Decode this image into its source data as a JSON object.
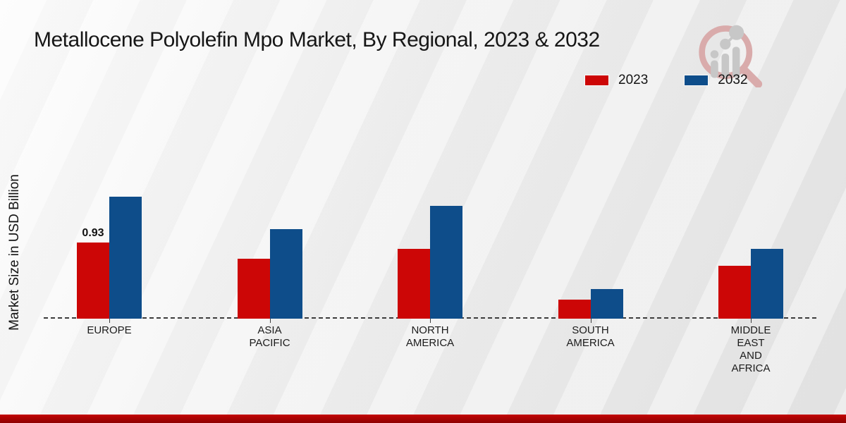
{
  "header": {
    "title": "Metallocene Polyolefin Mpo Market, By Regional, 2023 & 2032"
  },
  "y_axis_label": "Market Size in USD Billion",
  "legend": {
    "items": [
      {
        "label": "2023",
        "color": "#cc0606"
      },
      {
        "label": "2032",
        "color": "#0e4d8a"
      }
    ]
  },
  "logo": {
    "name": "magnifier-bar-chart-logo"
  },
  "colors": {
    "series_2023": "#cc0606",
    "series_2032": "#0e4d8a",
    "bottom_strip": "#b00303",
    "baseline": "#3c3c3c"
  },
  "chart_data": {
    "type": "bar",
    "title": "Metallocene Polyolefin Mpo Market, By Regional, 2023 & 2032",
    "categories": [
      "Europe",
      "Asia Pacific",
      "North America",
      "South America",
      "Middle East and Africa"
    ],
    "category_lines": [
      [
        "EUROPE"
      ],
      [
        "ASIA",
        "PACIFIC"
      ],
      [
        "NORTH",
        "AMERICA"
      ],
      [
        "SOUTH",
        "AMERICA"
      ],
      [
        "MIDDLE",
        "EAST",
        "AND",
        "AFRICA"
      ]
    ],
    "series": [
      {
        "name": "2023",
        "color": "#cc0606",
        "values": [
          0.93,
          0.73,
          0.85,
          0.23,
          0.65
        ]
      },
      {
        "name": "2032",
        "color": "#0e4d8a",
        "values": [
          1.49,
          1.09,
          1.38,
          0.36,
          0.85
        ]
      }
    ],
    "bar_labels": [
      {
        "series": "2023",
        "category_index": 0,
        "text": "0.93"
      }
    ],
    "xlabel": "",
    "ylabel": "Market Size in USD Billion",
    "ylim": [
      0,
      2.4
    ],
    "grid": false,
    "y_axis_ticks": "none",
    "legend_position": "top-right",
    "baseline_style": "dashed"
  }
}
